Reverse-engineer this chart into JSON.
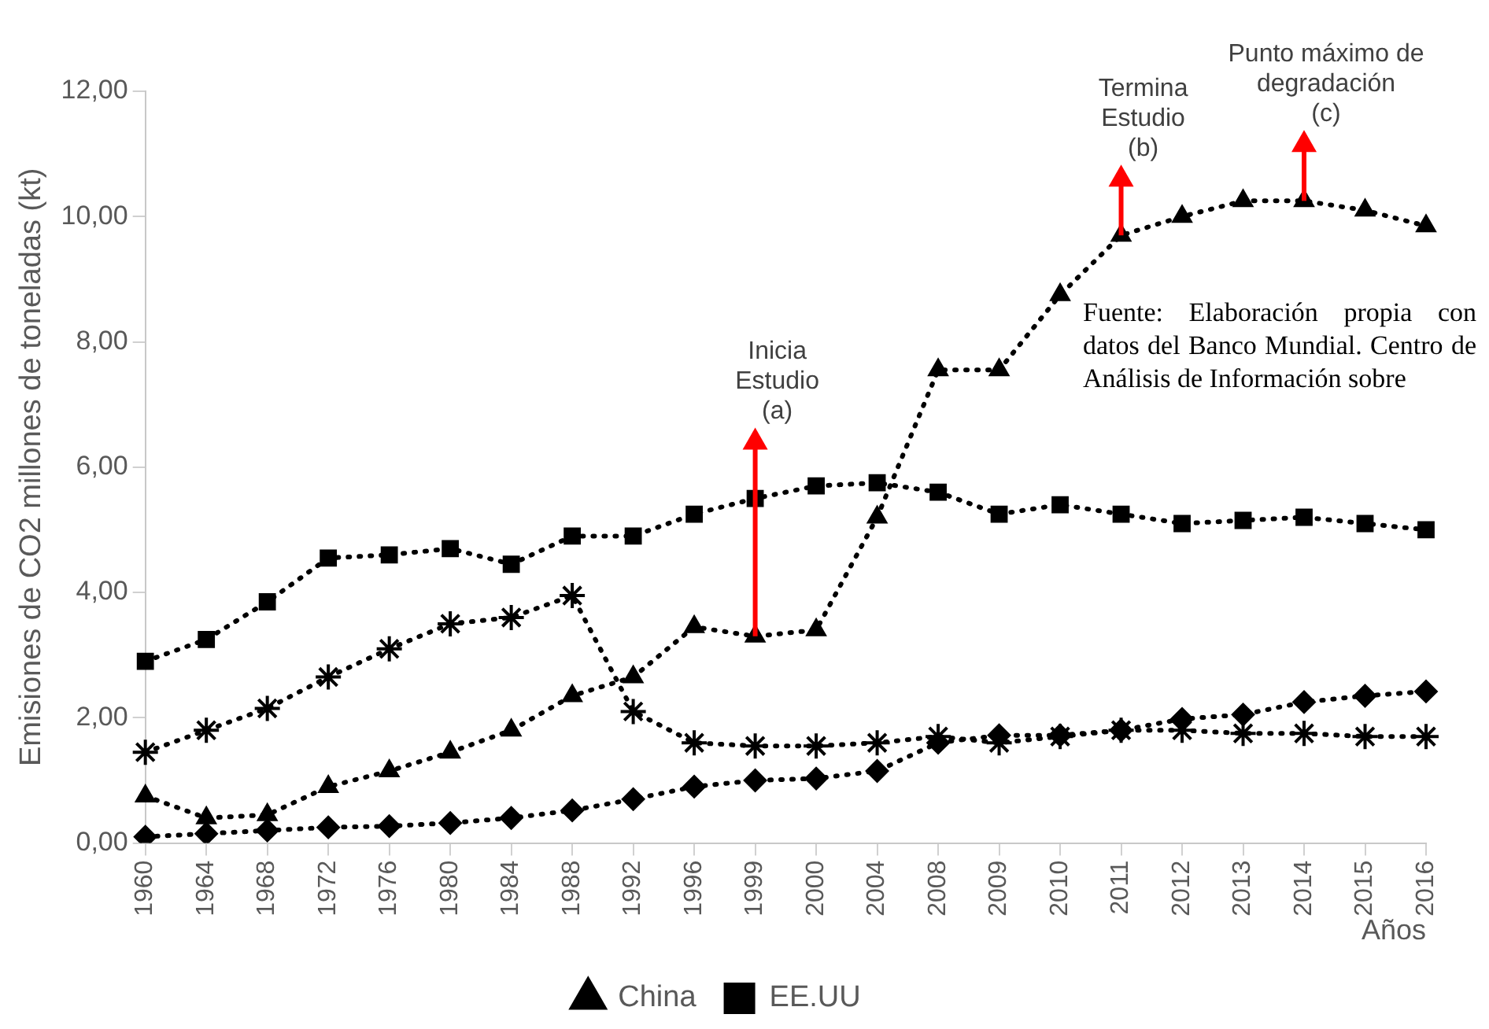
{
  "chart_data": {
    "type": "line",
    "ylabel": "Emisiones de CO2 millones de toneladas (kt)",
    "xlabel": "Años",
    "categories": [
      "1960",
      "1964",
      "1968",
      "1972",
      "1976",
      "1980",
      "1984",
      "1988",
      "1992",
      "1996",
      "1999",
      "2000",
      "2004",
      "2008",
      "2009",
      "2010",
      "2011",
      "2012",
      "2013",
      "2014",
      "2015",
      "2016"
    ],
    "series": [
      {
        "name": "China",
        "color": "#000000",
        "marker": "triangle",
        "values": [
          0.75,
          0.4,
          0.45,
          0.9,
          1.15,
          1.45,
          1.8,
          2.35,
          2.65,
          3.45,
          3.3,
          3.4,
          5.2,
          7.55,
          7.55,
          8.75,
          9.7,
          10.0,
          10.25,
          10.25,
          10.1,
          9.85
        ]
      },
      {
        "name": "EE.UU",
        "color": "#000000",
        "marker": "square",
        "values": [
          2.9,
          3.25,
          3.85,
          4.55,
          4.6,
          4.7,
          4.45,
          4.9,
          4.9,
          5.25,
          5.5,
          5.7,
          5.75,
          5.6,
          5.25,
          5.4,
          5.25,
          5.1,
          5.15,
          5.2,
          5.1,
          5.0
        ]
      },
      {
        "color": "#000000",
        "marker": "cross",
        "values": [
          1.45,
          1.8,
          2.15,
          2.65,
          3.1,
          3.5,
          3.6,
          3.95,
          2.1,
          1.6,
          1.55,
          1.55,
          1.6,
          1.7,
          1.6,
          1.7,
          1.8,
          1.8,
          1.75,
          1.75,
          1.7,
          1.7
        ]
      },
      {
        "color": "#000000",
        "marker": "diamond",
        "values": [
          0.1,
          0.15,
          0.2,
          0.25,
          0.27,
          0.32,
          0.4,
          0.52,
          0.7,
          0.9,
          1.0,
          1.03,
          1.15,
          1.6,
          1.72,
          1.72,
          1.8,
          1.98,
          2.05,
          2.25,
          2.35,
          2.42
        ]
      }
    ],
    "ylim": [
      0,
      12
    ],
    "yticks": [
      {
        "value": 0,
        "label": "0,00"
      },
      {
        "value": 2,
        "label": "2,00"
      },
      {
        "value": 4,
        "label": "4,00"
      },
      {
        "value": 6,
        "label": "6,00"
      },
      {
        "value": 8,
        "label": "8,00"
      },
      {
        "value": 10,
        "label": "10,00"
      },
      {
        "value": 12,
        "label": "12,00"
      }
    ],
    "grid": false,
    "legend": "bottom",
    "line_style": "dotted",
    "annotations": [
      {
        "text": "Inicia\nEstudio\n(a)",
        "x": "1999",
        "y": 3.3
      },
      {
        "text": "Termina\nEstudio\n(b)",
        "x": "2011",
        "y": 9.7
      },
      {
        "text": "Punto máximo de\ndegradación\n(c)",
        "x": "2014",
        "y": 10.25
      },
      "Fuente: Elaboración propia con datos del Banco Mundial. Centro de Análisis de Información sobre"
    ]
  }
}
